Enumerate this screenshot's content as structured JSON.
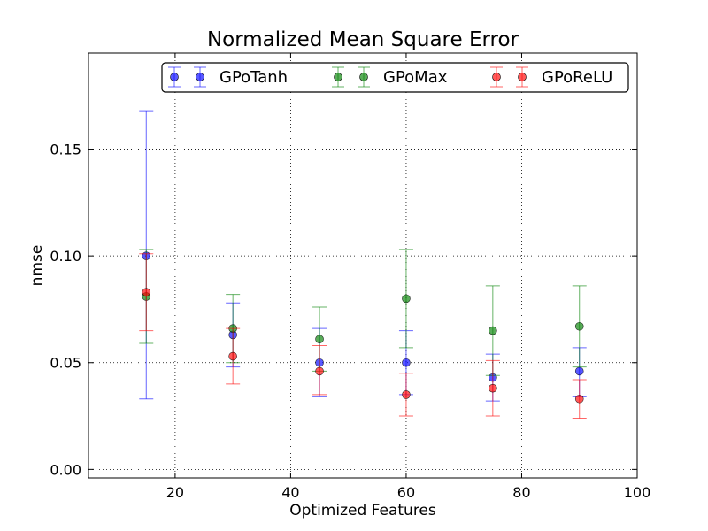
{
  "chart_data": {
    "type": "scatter",
    "title": "Normalized Mean Square Error",
    "xlabel": "Optimized Features",
    "ylabel": "nmse",
    "xlim": [
      5,
      100
    ],
    "ylim": [
      -0.004,
      0.195
    ],
    "xticks": [
      20,
      40,
      60,
      80,
      100
    ],
    "xtick_labels": [
      "20",
      "40",
      "60",
      "80",
      "100"
    ],
    "yticks": [
      0.0,
      0.05,
      0.1,
      0.15
    ],
    "ytick_labels": [
      "0.00",
      "0.05",
      "0.10",
      "0.15"
    ],
    "grid": true,
    "legend": "top-right",
    "series": [
      {
        "name": "GPoTanh",
        "color": "#0000ff",
        "x": [
          15,
          30,
          45,
          60,
          75,
          90
        ],
        "y": [
          0.1,
          0.063,
          0.05,
          0.05,
          0.043,
          0.046
        ],
        "err_low": [
          0.033,
          0.048,
          0.034,
          0.035,
          0.032,
          0.034
        ],
        "err_high": [
          0.168,
          0.078,
          0.066,
          0.065,
          0.054,
          0.057
        ]
      },
      {
        "name": "GPoMax",
        "color": "#008000",
        "x": [
          15,
          30,
          45,
          60,
          75,
          90
        ],
        "y": [
          0.081,
          0.066,
          0.061,
          0.08,
          0.065,
          0.067
        ],
        "err_low": [
          0.059,
          0.05,
          0.046,
          0.057,
          0.044,
          0.048
        ],
        "err_high": [
          0.103,
          0.082,
          0.076,
          0.103,
          0.086,
          0.086
        ]
      },
      {
        "name": "GPoReLU",
        "color": "#ff0000",
        "x": [
          15,
          30,
          45,
          60,
          75,
          90
        ],
        "y": [
          0.083,
          0.053,
          0.046,
          0.035,
          0.038,
          0.033
        ],
        "err_low": [
          0.065,
          0.04,
          0.035,
          0.025,
          0.025,
          0.024
        ],
        "err_high": [
          0.101,
          0.066,
          0.058,
          0.045,
          0.051,
          0.042
        ]
      }
    ]
  }
}
